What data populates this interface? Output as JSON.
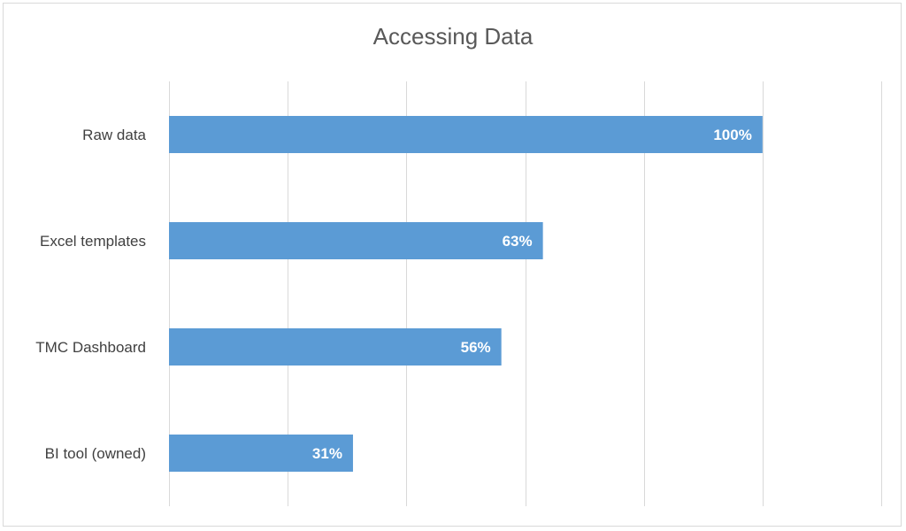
{
  "chart_data": {
    "type": "bar",
    "orientation": "horizontal",
    "title": "Accessing Data",
    "xlabel": "",
    "ylabel": "",
    "categories": [
      "Raw data",
      "Excel templates",
      "TMC Dashboard",
      "BI tool (owned)"
    ],
    "values": [
      100,
      63,
      56,
      31
    ],
    "data_labels": [
      "100%",
      "63%",
      "56%",
      "31%"
    ],
    "xlim": [
      0,
      120
    ],
    "grid": true,
    "legend": "none",
    "bar_color": "#5b9bd5",
    "gridline_color": "#d9d9d9"
  }
}
